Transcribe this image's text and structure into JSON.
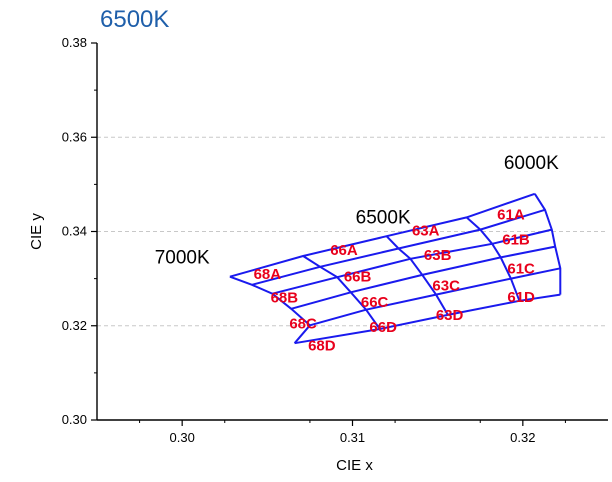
{
  "chart_data": {
    "type": "line",
    "title": "6500K",
    "xlabel": "CIE x",
    "ylabel": "CIE y",
    "xlim": [
      0.295,
      0.325
    ],
    "ylim": [
      0.3,
      0.38
    ],
    "xticks": [
      "0.30",
      "0.31",
      "0.32"
    ],
    "yticks": [
      "0.30",
      "0.32",
      "0.34",
      "0.36",
      "0.38"
    ],
    "grid": "horizontal dashed",
    "line_color": "#1a1aee",
    "bin_label_color": "#e8001c",
    "cct_labels": [
      {
        "text": "7000K",
        "x": 0.3,
        "y": 0.3345
      },
      {
        "text": "6500K",
        "x": 0.3118,
        "y": 0.343
      },
      {
        "text": "6000K",
        "x": 0.3205,
        "y": 0.3545
      }
    ],
    "grid_points": [
      [
        [
          0.3028,
          0.3304
        ],
        [
          0.3071,
          0.3348
        ],
        [
          0.312,
          0.339
        ],
        [
          0.3167,
          0.343
        ],
        [
          0.3207,
          0.348
        ]
      ],
      [
        [
          0.3041,
          0.3287
        ],
        [
          0.3081,
          0.3325
        ],
        [
          0.3127,
          0.3364
        ],
        [
          0.3175,
          0.3404
        ],
        [
          0.3213,
          0.3446
        ]
      ],
      [
        [
          0.3053,
          0.3268
        ],
        [
          0.3091,
          0.3303
        ],
        [
          0.3134,
          0.3342
        ],
        [
          0.3182,
          0.3374
        ],
        [
          0.3217,
          0.3404
        ]
      ],
      [
        [
          0.3064,
          0.3236
        ],
        [
          0.3099,
          0.3271
        ],
        [
          0.3141,
          0.3308
        ],
        [
          0.3187,
          0.3345
        ],
        [
          0.3219,
          0.3368
        ]
      ],
      [
        [
          0.3075,
          0.3201
        ],
        [
          0.3108,
          0.3234
        ],
        [
          0.3149,
          0.3266
        ],
        [
          0.3193,
          0.33
        ],
        [
          0.3222,
          0.3322
        ]
      ],
      [
        [
          0.3066,
          0.3163
        ],
        [
          0.3116,
          0.3193
        ],
        [
          0.3156,
          0.3223
        ],
        [
          0.3198,
          0.3253
        ],
        [
          0.3222,
          0.3266
        ]
      ]
    ],
    "bins": [
      {
        "label": "61A",
        "x": 0.3193,
        "y": 0.3436
      },
      {
        "label": "61B",
        "x": 0.3196,
        "y": 0.3383
      },
      {
        "label": "61C",
        "x": 0.3199,
        "y": 0.3322
      },
      {
        "label": "61D",
        "x": 0.3199,
        "y": 0.3261
      },
      {
        "label": "63A",
        "x": 0.3143,
        "y": 0.3402
      },
      {
        "label": "63B",
        "x": 0.315,
        "y": 0.335
      },
      {
        "label": "63C",
        "x": 0.3155,
        "y": 0.3285
      },
      {
        "label": "63D",
        "x": 0.3157,
        "y": 0.3223
      },
      {
        "label": "66A",
        "x": 0.3095,
        "y": 0.3361
      },
      {
        "label": "66B",
        "x": 0.3103,
        "y": 0.3305
      },
      {
        "label": "66C",
        "x": 0.3113,
        "y": 0.325
      },
      {
        "label": "66D",
        "x": 0.3118,
        "y": 0.3197
      },
      {
        "label": "68A",
        "x": 0.305,
        "y": 0.331
      },
      {
        "label": "68B",
        "x": 0.306,
        "y": 0.326
      },
      {
        "label": "68C",
        "x": 0.3071,
        "y": 0.3205
      },
      {
        "label": "68D",
        "x": 0.3082,
        "y": 0.3158
      }
    ]
  }
}
